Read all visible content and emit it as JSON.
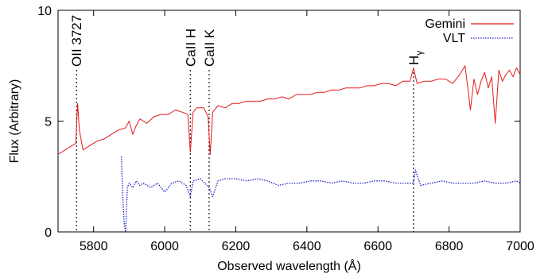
{
  "chart_data": {
    "type": "line",
    "xlabel": "Observed wavelength (Å)",
    "ylabel": "Flux (Arbitrary)",
    "xlim": [
      5700,
      7000
    ],
    "ylim": [
      0,
      10
    ],
    "xticks": [
      5800,
      6000,
      6200,
      6400,
      6600,
      6800,
      7000
    ],
    "yticks": [
      0,
      5,
      10
    ],
    "legend_position": "top-right",
    "series": [
      {
        "name": "Gemini",
        "color": "#e41a1c",
        "style": "solid",
        "x": [
          5700,
          5720,
          5740,
          5750,
          5755,
          5760,
          5770,
          5790,
          5810,
          5830,
          5850,
          5870,
          5890,
          5900,
          5910,
          5920,
          5930,
          5950,
          5970,
          5990,
          6010,
          6030,
          6050,
          6065,
          6072,
          6080,
          6090,
          6110,
          6122,
          6128,
          6135,
          6150,
          6170,
          6190,
          6210,
          6230,
          6250,
          6270,
          6290,
          6310,
          6330,
          6350,
          6370,
          6390,
          6410,
          6430,
          6450,
          6470,
          6490,
          6510,
          6530,
          6550,
          6570,
          6590,
          6610,
          6630,
          6650,
          6670,
          6690,
          6700,
          6710,
          6730,
          6750,
          6770,
          6790,
          6810,
          6830,
          6845,
          6855,
          6860,
          6870,
          6880,
          6890,
          6900,
          6910,
          6920,
          6930,
          6940,
          6950,
          6960,
          6970,
          6980,
          6990,
          7000
        ],
        "y": [
          3.5,
          3.7,
          3.9,
          4.0,
          5.8,
          4.6,
          3.7,
          3.9,
          4.1,
          4.2,
          4.4,
          4.6,
          4.7,
          5.0,
          4.4,
          4.8,
          5.1,
          4.9,
          5.2,
          5.3,
          5.3,
          5.5,
          5.4,
          5.3,
          3.6,
          5.4,
          5.6,
          5.6,
          5.2,
          3.5,
          5.4,
          5.7,
          5.6,
          5.8,
          5.8,
          5.9,
          5.9,
          5.9,
          6.0,
          6.0,
          6.1,
          6.0,
          6.2,
          6.2,
          6.2,
          6.3,
          6.3,
          6.4,
          6.4,
          6.5,
          6.5,
          6.5,
          6.6,
          6.6,
          6.7,
          6.7,
          6.6,
          6.8,
          6.8,
          7.4,
          6.7,
          6.8,
          6.8,
          6.9,
          6.9,
          6.7,
          7.1,
          7.5,
          6.2,
          5.5,
          6.9,
          6.2,
          6.8,
          7.2,
          6.5,
          7.0,
          4.9,
          7.3,
          6.8,
          7.1,
          7.3,
          7.0,
          7.4,
          7.1
        ]
      },
      {
        "name": "VLT",
        "color": "#1f24c8",
        "style": "dotted",
        "x": [
          5878,
          5882,
          5886,
          5890,
          5895,
          5900,
          5910,
          5920,
          5930,
          5940,
          5960,
          5980,
          6000,
          6020,
          6040,
          6060,
          6072,
          6080,
          6100,
          6125,
          6135,
          6150,
          6170,
          6200,
          6230,
          6260,
          6290,
          6320,
          6350,
          6380,
          6410,
          6440,
          6470,
          6500,
          6530,
          6560,
          6590,
          6620,
          6650,
          6680,
          6700,
          6705,
          6720,
          6750,
          6780,
          6810,
          6840,
          6870,
          6900,
          6930,
          6960,
          6990,
          7000
        ],
        "y": [
          3.4,
          1.6,
          0.4,
          0.0,
          2.0,
          2.2,
          2.0,
          2.3,
          2.1,
          2.2,
          2.0,
          2.2,
          1.8,
          2.2,
          2.3,
          2.1,
          1.6,
          2.3,
          2.4,
          2.0,
          1.6,
          2.3,
          2.4,
          2.4,
          2.3,
          2.4,
          2.3,
          2.1,
          2.2,
          2.2,
          2.3,
          2.3,
          2.2,
          2.3,
          2.2,
          2.2,
          2.3,
          2.3,
          2.2,
          2.2,
          2.2,
          2.8,
          2.1,
          2.2,
          2.3,
          2.2,
          2.2,
          2.2,
          2.3,
          2.2,
          2.2,
          2.3,
          2.2
        ]
      }
    ],
    "line_markers": [
      {
        "label": "OII 3727",
        "x": 5752
      },
      {
        "label": "CaII H",
        "x": 6072
      },
      {
        "label": "CaII K",
        "x": 6125
      },
      {
        "label": "H",
        "sub": "γ",
        "x": 6700
      }
    ]
  }
}
